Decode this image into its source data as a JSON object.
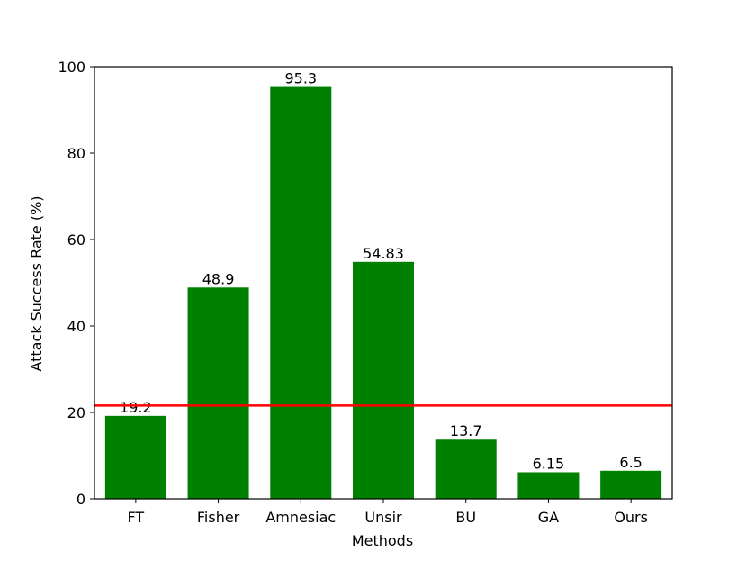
{
  "chart_data": {
    "type": "bar",
    "categories": [
      "FT",
      "Fisher",
      "Amnesiac",
      "Unsir",
      "BU",
      "GA",
      "Ours"
    ],
    "values": [
      19.2,
      48.9,
      95.3,
      54.83,
      13.7,
      6.15,
      6.5
    ],
    "value_labels": [
      "19.2",
      "48.9",
      "95.3",
      "54.83",
      "13.7",
      "6.15",
      "6.5"
    ],
    "xlabel": "Methods",
    "ylabel": "Attack Success Rate (%)",
    "ylim": [
      0,
      100
    ],
    "yticks": [
      0,
      20,
      40,
      60,
      80,
      100
    ],
    "ytick_labels": [
      "0",
      "20",
      "40",
      "60",
      "80",
      "100"
    ],
    "grid": false,
    "bar_color": "#008000",
    "reference_line": {
      "y": 21.6,
      "color": "#ff0000"
    }
  }
}
